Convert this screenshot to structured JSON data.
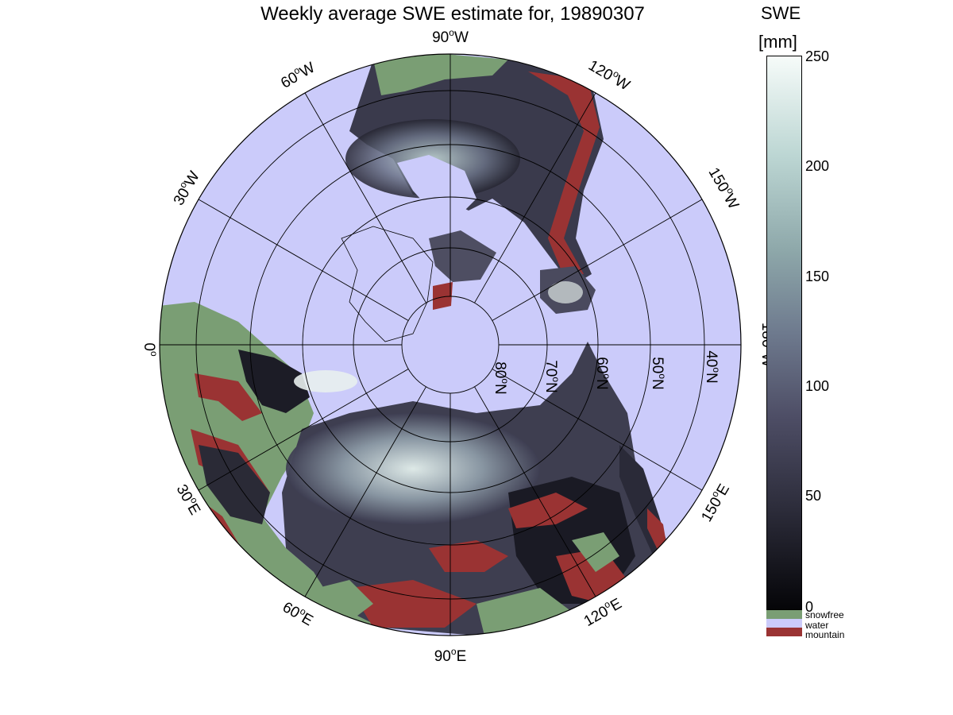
{
  "title": "Weekly average SWE estimate for, 19890307",
  "colorbar": {
    "title": "SWE",
    "unit": "[mm]",
    "ticks": [
      "0",
      "50",
      "100",
      "150",
      "200",
      "250"
    ],
    "range": [
      0,
      250
    ],
    "colors": {
      "low": "#050508",
      "high": "#f6fbf9"
    },
    "categories": [
      {
        "label": "snowfree",
        "color": "#7a9e74"
      },
      {
        "label": "water",
        "color": "#cbcbfa"
      },
      {
        "label": "mountain",
        "color": "#9a3333"
      }
    ]
  },
  "map": {
    "projection": "north-polar-stereographic",
    "longitude_labels": [
      "0",
      "30",
      "60",
      "90",
      "120",
      "150",
      "180",
      "150",
      "120",
      "90",
      "60",
      "30"
    ],
    "longitude_hemis": [
      "",
      "E",
      "E",
      "E",
      "E",
      "E",
      "W",
      "W",
      "W",
      "W",
      "W",
      "W"
    ],
    "latitude_labels": [
      "40",
      "50",
      "60",
      "70",
      "80"
    ],
    "latitude_hemi": "N"
  }
}
